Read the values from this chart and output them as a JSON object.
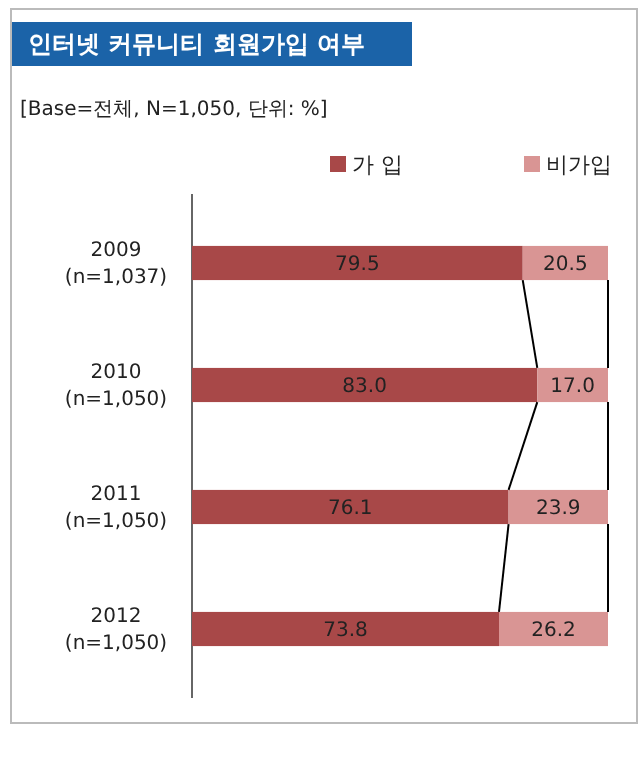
{
  "chart_data": {
    "type": "bar",
    "orientation": "horizontal",
    "stacked": true,
    "title": "인터넷 커뮤니티 회원가입 여부",
    "subtitle": "[Base=전체, N=1,050, 단위: %]",
    "categories": [
      "2009 (n=1,037)",
      "2010 (n=1,050)",
      "2011 (n=1,050)",
      "2012 (n=1,050)"
    ],
    "series": [
      {
        "name": "가 입",
        "color": "#a84848",
        "values": [
          79.5,
          83.0,
          76.1,
          73.8
        ],
        "value_labels": [
          "79.5",
          "83.0",
          "76.1",
          "73.8"
        ]
      },
      {
        "name": "비가입",
        "color": "#d99594",
        "values": [
          20.5,
          17.0,
          23.9,
          26.2
        ],
        "value_labels": [
          "20.5",
          "17.0",
          "23.9",
          "26.2"
        ]
      }
    ],
    "legend": "top right"
  }
}
